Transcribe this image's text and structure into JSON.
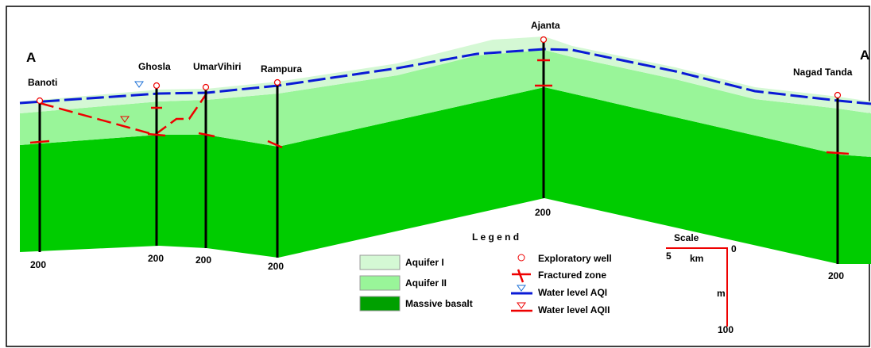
{
  "section": {
    "left_label": "A",
    "right_label": "A",
    "wells": [
      {
        "name": "Banoti",
        "depth_label": 200
      },
      {
        "name": "Ghosla",
        "depth_label": 200
      },
      {
        "name": "UmarVihiri",
        "depth_label": 200
      },
      {
        "name": "Rampura",
        "depth_label": 200
      },
      {
        "name": "Ajanta",
        "depth_label": 200
      },
      {
        "name": "Nagad Tanda",
        "depth_label": 200
      }
    ]
  },
  "legend": {
    "title": "L e g e n d",
    "items": [
      "Aquifer I",
      "Aquifer II",
      "Massive basalt",
      "Exploratory well",
      "Fractured zone",
      "Water level AQI",
      "Water level AQII"
    ]
  },
  "scale": {
    "title": "Scale",
    "km_value": 5,
    "km_unit": "km",
    "zero": 0,
    "m_unit": "m",
    "m_value": 100
  }
}
